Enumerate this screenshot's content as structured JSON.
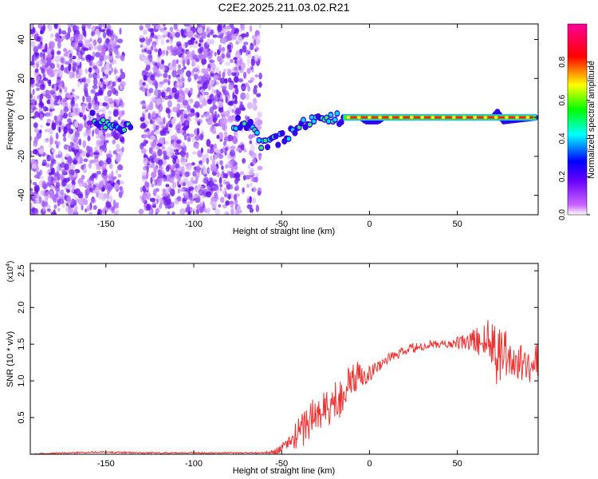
{
  "figure": {
    "title": "C2E2.2025.211.03.02.R21"
  },
  "chart_data": [
    {
      "type": "heatmap",
      "xlabel": "Height of straight line (km)",
      "ylabel": "Frequency (Hz)",
      "xlim": [
        -193,
        96
      ],
      "ylim": [
        -50,
        48
      ],
      "xticks": [
        -150,
        -100,
        -50,
        0,
        50
      ],
      "yticks": [
        -40,
        -20,
        0,
        20,
        40
      ],
      "colorbar": {
        "label": "Normalized spectral amplitude",
        "range": [
          0,
          1
        ],
        "ticks": [
          "0.0",
          "0.2",
          "0.4",
          "0.6",
          "0.8"
        ],
        "colors": [
          "#ffffff",
          "#cc66ff",
          "#0000ff",
          "#00ffff",
          "#00ff00",
          "#ffff00",
          "#ff0000",
          "#ff0099"
        ]
      },
      "ridge": [
        {
          "x": -158,
          "y": 0
        },
        {
          "x": -145,
          "y": -5
        },
        {
          "x": -140,
          "y": -5
        },
        {
          "x": -75,
          "y": -3
        },
        {
          "x": -68,
          "y": -4
        },
        {
          "x": -62,
          "y": -14
        },
        {
          "x": -52,
          "y": -12
        },
        {
          "x": -40,
          "y": -4
        },
        {
          "x": -30,
          "y": -2
        },
        {
          "x": -20,
          "y": -1
        },
        {
          "x": -15,
          "y": 0
        },
        {
          "x": -5,
          "y": 0
        },
        {
          "x": -2,
          "y": -2
        },
        {
          "x": 5,
          "y": -2
        },
        {
          "x": 8,
          "y": 0
        },
        {
          "x": 70,
          "y": 0
        },
        {
          "x": 73,
          "y": 3
        },
        {
          "x": 76,
          "y": -2
        },
        {
          "x": 95,
          "y": 0
        }
      ],
      "grid": false,
      "grid_gaps": [
        [
          -140,
          -130
        ]
      ]
    },
    {
      "type": "line",
      "xlabel": "Height of straight line (km)",
      "ylabel": "SNR (10 * v/v)",
      "scale_label": "(x10",
      "scale_exponent": "4",
      "xlim": [
        -193,
        96
      ],
      "ylim": [
        0,
        2.6
      ],
      "xticks": [
        -150,
        -100,
        -50,
        0,
        50
      ],
      "yticks": [
        0.5,
        1.0,
        1.5,
        2.0,
        2.5
      ],
      "ytick_labels": [
        "0.5",
        "1.0",
        "1.5",
        "2.0",
        "2.5"
      ],
      "color": "#ee3333",
      "series": [
        {
          "x": [
            -193,
            -170,
            -150,
            -130,
            -110,
            -90,
            -70,
            -60,
            -55,
            -50,
            -45,
            -40,
            -35,
            -30,
            -25,
            -20,
            -15,
            -10,
            -5,
            0,
            5,
            10,
            15,
            20,
            25,
            30,
            35,
            40,
            45,
            50,
            55,
            60,
            65,
            70,
            72,
            75,
            78,
            80,
            85,
            90,
            96
          ],
          "values": [
            0.0,
            0.02,
            0.03,
            0.02,
            0.02,
            0.02,
            0.02,
            0.02,
            0.03,
            0.08,
            0.18,
            0.3,
            0.45,
            0.55,
            0.6,
            0.7,
            0.85,
            1.0,
            1.1,
            1.1,
            1.2,
            1.3,
            1.35,
            1.4,
            1.45,
            1.45,
            1.5,
            1.5,
            1.5,
            1.52,
            1.52,
            1.55,
            1.55,
            1.55,
            1.4,
            1.45,
            1.4,
            1.3,
            1.25,
            1.2,
            1.3
          ],
          "noise": [
            0.01,
            0.01,
            0.01,
            0.01,
            0.01,
            0.01,
            0.01,
            0.01,
            0.03,
            0.06,
            0.12,
            0.22,
            0.3,
            0.32,
            0.3,
            0.3,
            0.3,
            0.25,
            0.18,
            0.12,
            0.08,
            0.07,
            0.07,
            0.07,
            0.07,
            0.06,
            0.05,
            0.05,
            0.06,
            0.08,
            0.12,
            0.18,
            0.25,
            0.35,
            0.45,
            0.45,
            0.4,
            0.3,
            0.25,
            0.25,
            0.25
          ]
        }
      ],
      "grid": false
    }
  ]
}
